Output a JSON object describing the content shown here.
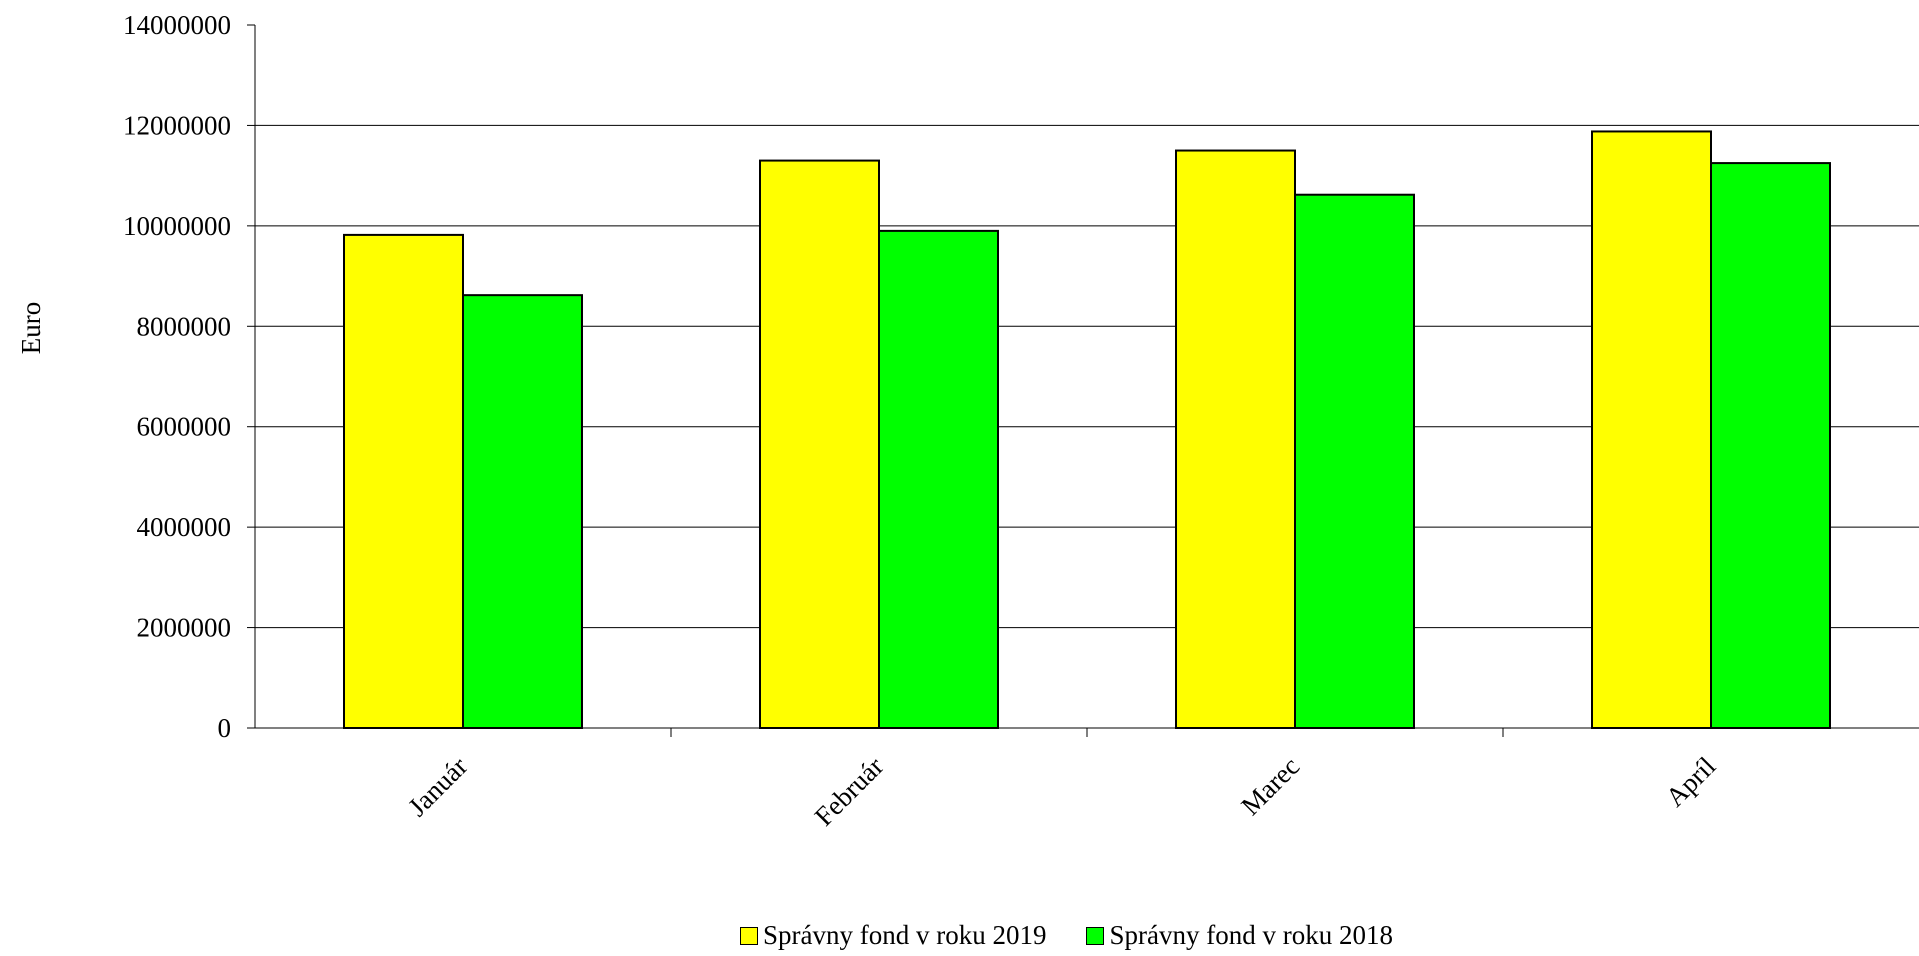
{
  "chart_data": {
    "type": "bar",
    "title": "",
    "xlabel": "",
    "ylabel": "Euro",
    "ylim": [
      0,
      14000000
    ],
    "yticks": [
      "0",
      "2000000",
      "4000000",
      "6000000",
      "8000000",
      "10000000",
      "12000000",
      "14000000"
    ],
    "categories": [
      "Január",
      "Február",
      "Marec",
      "Apríl"
    ],
    "series": [
      {
        "name": "Správny fond v roku 2019",
        "color": "#ffff00",
        "values": [
          9820000,
          11300000,
          11500000,
          11880000
        ]
      },
      {
        "name": "Správny fond v roku 2018",
        "color": "#00ff00",
        "values": [
          8620000,
          9900000,
          10620000,
          11250000
        ]
      }
    ],
    "grid": true,
    "legend_position": "bottom"
  }
}
